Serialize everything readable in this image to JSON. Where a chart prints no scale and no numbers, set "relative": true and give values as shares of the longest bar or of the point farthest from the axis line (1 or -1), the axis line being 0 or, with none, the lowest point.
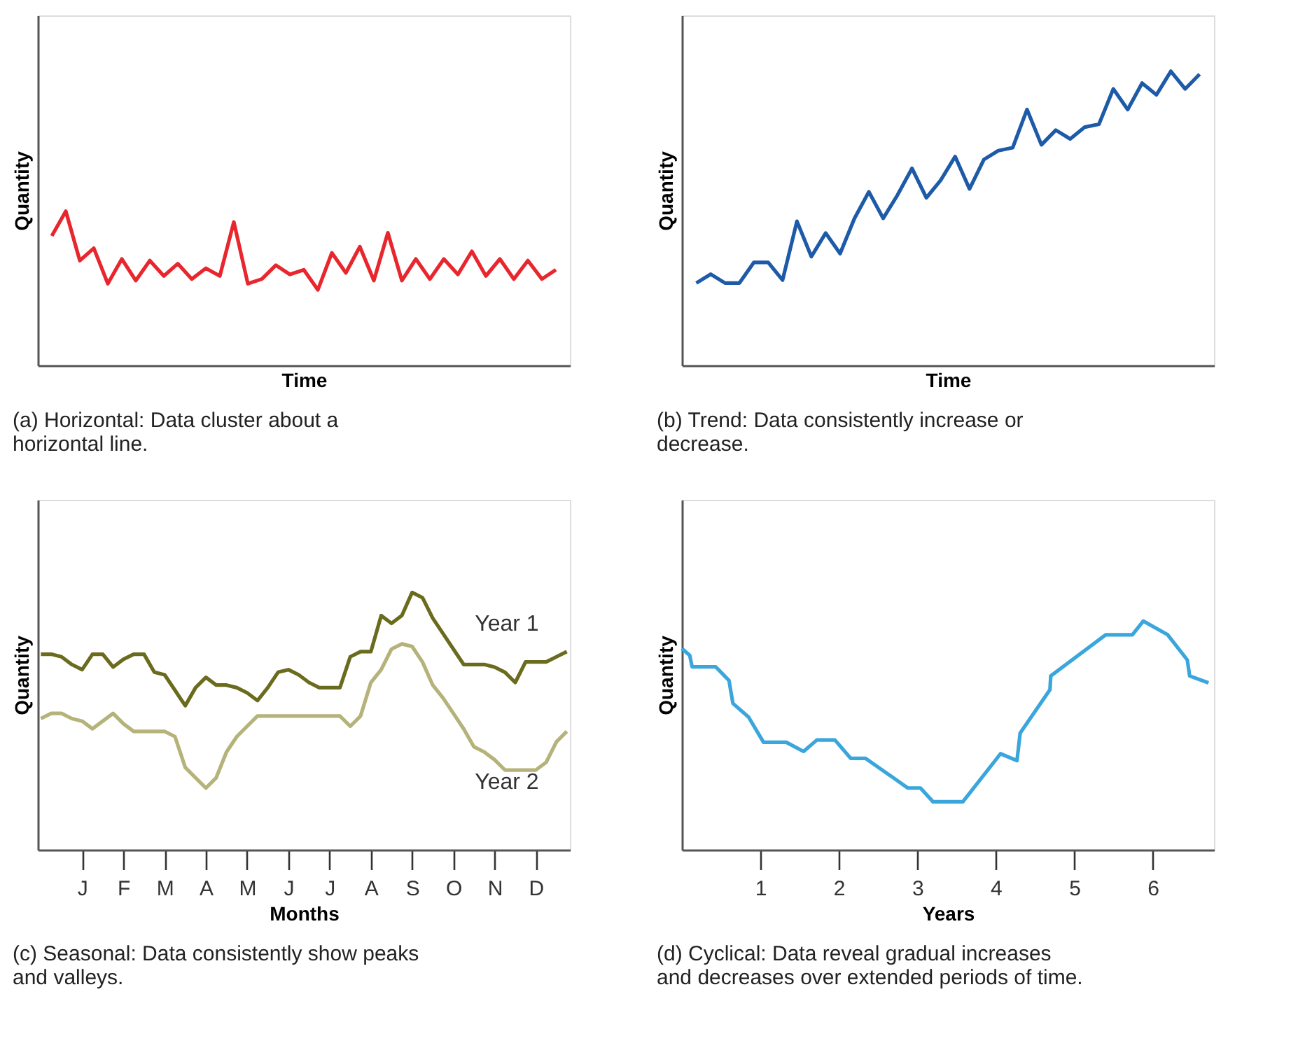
{
  "chart_data": [
    {
      "type": "line",
      "relative": true,
      "xlabel": "Time",
      "ylabel": "Quantity",
      "annotations": [
        "(a) Horizontal: Data cluster about a horizontal line."
      ],
      "categories": [
        null,
        null,
        null,
        null,
        null,
        null,
        null,
        null,
        null,
        null,
        null,
        null,
        null,
        null,
        null,
        null,
        null,
        null,
        null,
        null,
        null,
        null,
        null,
        null,
        null,
        null,
        null,
        null,
        null,
        null,
        null,
        null,
        null,
        null,
        null,
        null,
        null
      ],
      "series": [
        {
          "color": "#e8262e",
          "values": [
            0.84,
            1.0,
            0.68,
            0.76,
            0.53,
            0.69,
            0.55,
            0.68,
            0.58,
            0.66,
            0.56,
            0.63,
            0.58,
            0.93,
            0.53,
            0.56,
            0.65,
            0.59,
            0.62,
            0.49,
            0.73,
            0.6,
            0.77,
            0.55,
            0.86,
            0.55,
            0.69,
            0.56,
            0.69,
            0.59,
            0.74,
            0.58,
            0.69,
            0.56,
            0.68,
            0.56,
            0.62
          ]
        }
      ],
      "legend": false,
      "grid": false,
      "marker": "none",
      "line_style": "solid"
    },
    {
      "type": "line",
      "relative": true,
      "xlabel": "Time",
      "ylabel": "Quantity",
      "annotations": [
        "(b) Trend: Data consistently increase or decrease."
      ],
      "categories": [
        null,
        null,
        null,
        null,
        null,
        null,
        null,
        null,
        null,
        null,
        null,
        null,
        null,
        null,
        null,
        null,
        null,
        null,
        null,
        null,
        null,
        null,
        null,
        null,
        null,
        null,
        null,
        null,
        null,
        null,
        null,
        null,
        null,
        null,
        null,
        null
      ],
      "series": [
        {
          "color": "#1d5aa8",
          "values": [
            0.28,
            0.31,
            0.28,
            0.28,
            0.35,
            0.35,
            0.29,
            0.49,
            0.37,
            0.45,
            0.38,
            0.5,
            0.59,
            0.5,
            0.58,
            0.67,
            0.57,
            0.63,
            0.71,
            0.6,
            0.7,
            0.73,
            0.74,
            0.87,
            0.75,
            0.8,
            0.77,
            0.81,
            0.82,
            0.94,
            0.87,
            0.96,
            0.92,
            1.0,
            0.94,
            0.99
          ]
        }
      ],
      "legend": false,
      "grid": false,
      "marker": "none",
      "line_style": "solid"
    },
    {
      "type": "line",
      "relative": true,
      "xlabel": "Months",
      "ylabel": "Quantity",
      "annotations": [
        "(c) Seasonal: Data consistently show peaks and valleys."
      ],
      "categories": [
        null,
        null,
        null,
        null,
        "J",
        null,
        null,
        null,
        "F",
        null,
        null,
        null,
        "M",
        null,
        null,
        null,
        "A",
        null,
        null,
        null,
        "M",
        null,
        null,
        null,
        "J",
        null,
        null,
        null,
        "J",
        null,
        null,
        null,
        "A",
        null,
        null,
        null,
        "S",
        null,
        null,
        null,
        "O",
        null,
        null,
        null,
        "N",
        null,
        null,
        null,
        "D",
        null,
        null,
        null
      ],
      "series": [
        {
          "name": "Year 1",
          "color": "#6b6b1e",
          "values": [
            0.76,
            0.76,
            0.75,
            0.72,
            0.7,
            0.76,
            0.76,
            0.71,
            0.74,
            0.76,
            0.76,
            0.69,
            0.68,
            0.62,
            0.56,
            0.63,
            0.67,
            0.64,
            0.64,
            0.63,
            0.61,
            0.58,
            0.63,
            0.69,
            0.7,
            0.68,
            0.65,
            0.63,
            0.63,
            0.63,
            0.75,
            0.77,
            0.77,
            0.91,
            0.88,
            0.91,
            1.0,
            0.98,
            0.9,
            0.84,
            0.78,
            0.72,
            0.72,
            0.72,
            0.71,
            0.69,
            0.65,
            0.73,
            0.73,
            0.73,
            0.75,
            0.77
          ]
        },
        {
          "name": "Year 2",
          "color": "#b5b27a",
          "values": [
            0.51,
            0.53,
            0.53,
            0.51,
            0.5,
            0.47,
            0.5,
            0.53,
            0.49,
            0.46,
            0.46,
            0.46,
            0.46,
            0.44,
            0.32,
            0.28,
            0.24,
            0.28,
            0.38,
            0.44,
            0.48,
            0.52,
            0.52,
            0.52,
            0.52,
            0.52,
            0.52,
            0.52,
            0.52,
            0.52,
            0.48,
            0.52,
            0.65,
            0.7,
            0.78,
            0.8,
            0.79,
            0.73,
            0.64,
            0.59,
            0.53,
            0.47,
            0.4,
            0.38,
            0.35,
            0.31,
            0.31,
            0.31,
            0.31,
            0.34,
            0.42,
            0.46
          ]
        }
      ],
      "legend": false,
      "grid": false,
      "marker": "none",
      "line_style": "solid"
    },
    {
      "type": "line",
      "relative": true,
      "xlabel": "Years",
      "ylabel": "Quantity",
      "annotations": [
        "(d) Cyclical: Data reveal gradual increases and decreases over extended periods of time."
      ],
      "xlim": [
        0,
        6.78
      ],
      "xticks": [
        1,
        2,
        3,
        4,
        5,
        6
      ],
      "series": [
        {
          "color": "#3aa6dc",
          "x": [
            0,
            0.1,
            0.13,
            0.43,
            0.6,
            0.65,
            0.85,
            1.04,
            1.33,
            1.55,
            1.72,
            1.95,
            2.15,
            2.34,
            2.88,
            3.04,
            3.2,
            3.58,
            4.06,
            4.27,
            4.31,
            4.69,
            4.7,
            5.4,
            5.74,
            5.88,
            6.19,
            6.44,
            6.47,
            6.71
          ],
          "values": [
            0.88,
            0.85,
            0.8,
            0.8,
            0.74,
            0.64,
            0.58,
            0.47,
            0.47,
            0.43,
            0.48,
            0.48,
            0.4,
            0.4,
            0.27,
            0.27,
            0.21,
            0.21,
            0.42,
            0.39,
            0.51,
            0.7,
            0.76,
            0.94,
            0.94,
            1.0,
            0.94,
            0.83,
            0.76,
            0.73
          ]
        }
      ],
      "legend": false,
      "grid": false,
      "marker": "none",
      "line_style": "solid"
    }
  ]
}
